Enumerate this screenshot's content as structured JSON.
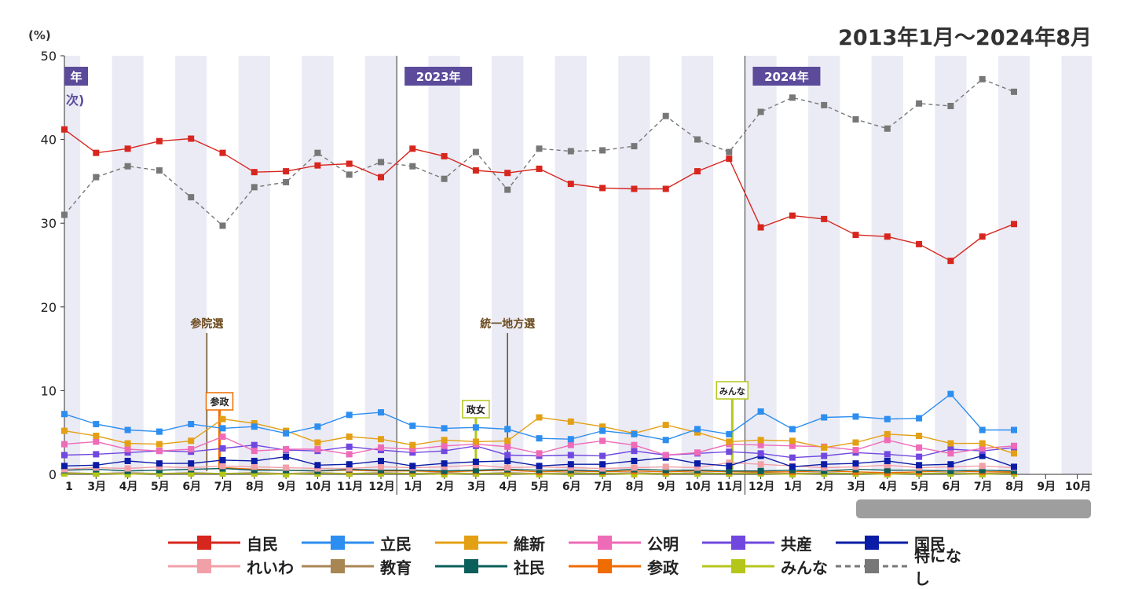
{
  "header": {
    "range": "2013年1月～2024年8月",
    "unit": "(%)"
  },
  "chart_data": {
    "type": "line",
    "title": "",
    "xlabel": "",
    "ylabel": "(%)",
    "ylim": [
      0,
      50
    ],
    "yticks": [
      0,
      10,
      20,
      30,
      40,
      50
    ],
    "year_labels": [
      {
        "label": "年",
        "at": "2022-01"
      },
      {
        "label": "2023年",
        "at": "2023-01"
      },
      {
        "label": "2024年",
        "at": "2024-01"
      }
    ],
    "partial_text": "次)",
    "x_tick_labels": [
      "1",
      "3月",
      "4月",
      "5月",
      "6月",
      "7月",
      "8月",
      "9月",
      "10月",
      "11月",
      "12月",
      "1月",
      "2月",
      "3月",
      "4月",
      "5月",
      "6月",
      "7月",
      "8月",
      "9月",
      "10月",
      "11月",
      "12月",
      "1月",
      "2月",
      "3月",
      "4月",
      "5月",
      "6月",
      "7月",
      "8月",
      "9月",
      "10月"
    ],
    "annotations": [
      {
        "label": "参院選",
        "type": "event",
        "at_index": 4.5
      },
      {
        "label": "統一地方選",
        "type": "event",
        "at_index": 14
      },
      {
        "label": "参政",
        "type": "party-debut",
        "at_index": 4.9,
        "color": "#ef6c00"
      },
      {
        "label": "政女",
        "type": "party-debut",
        "at_index": 13,
        "color": "#b5c61b"
      },
      {
        "label": "みんな",
        "type": "party-debut",
        "at_index": 21.1,
        "color": "#b5c61b"
      }
    ],
    "series": [
      {
        "name": "自民",
        "color": "#d7261e",
        "dashed": false,
        "values": [
          41.2,
          38.4,
          38.9,
          39.8,
          40.1,
          38.4,
          36.1,
          36.2,
          36.9,
          37.1,
          35.5,
          38.9,
          38.0,
          36.3,
          36.0,
          36.5,
          34.7,
          34.2,
          34.1,
          34.1,
          36.2,
          37.7,
          29.5,
          30.9,
          30.5,
          28.6,
          28.4,
          27.5,
          25.5,
          28.4,
          29.9
        ]
      },
      {
        "name": "立民",
        "color": "#2c8ef0",
        "dashed": false,
        "values": [
          7.2,
          6.0,
          5.3,
          5.1,
          6.0,
          5.5,
          5.7,
          4.9,
          5.7,
          7.1,
          7.4,
          5.8,
          5.5,
          5.6,
          5.4,
          4.3,
          4.2,
          5.2,
          4.8,
          4.1,
          5.4,
          4.8,
          7.5,
          5.4,
          6.8,
          6.9,
          6.6,
          6.7,
          9.6,
          5.3,
          5.3
        ]
      },
      {
        "name": "維新",
        "color": "#e3a014",
        "dashed": false,
        "values": [
          5.2,
          4.6,
          3.7,
          3.6,
          4.0,
          6.6,
          6.1,
          5.2,
          3.8,
          4.5,
          4.2,
          3.5,
          4.1,
          3.9,
          4.0,
          6.8,
          6.3,
          5.7,
          4.9,
          5.9,
          5.0,
          3.9,
          4.1,
          4.0,
          3.2,
          3.8,
          4.8,
          4.6,
          3.7,
          3.7,
          2.5
        ]
      },
      {
        "name": "公明",
        "color": "#ee6bb8",
        "dashed": false,
        "values": [
          3.6,
          3.9,
          3.0,
          2.8,
          3.0,
          4.5,
          2.8,
          3.0,
          3.0,
          2.4,
          3.2,
          3.0,
          3.4,
          3.6,
          3.3,
          2.5,
          3.5,
          4.0,
          3.5,
          2.3,
          2.6,
          3.6,
          3.5,
          3.4,
          3.3,
          2.9,
          4.1,
          3.2,
          2.5,
          3.1,
          3.4
        ]
      },
      {
        "name": "共産",
        "color": "#7048e0",
        "dashed": false,
        "values": [
          2.3,
          2.4,
          2.6,
          2.8,
          2.7,
          3.1,
          3.5,
          2.9,
          2.8,
          3.3,
          2.9,
          2.6,
          2.8,
          3.4,
          2.3,
          2.2,
          2.3,
          2.2,
          2.8,
          2.3,
          2.5,
          2.7,
          2.5,
          2.0,
          2.2,
          2.6,
          2.4,
          2.1,
          3.0,
          2.8,
          3.2
        ]
      },
      {
        "name": "国民",
        "color": "#0a1ca5",
        "dashed": false,
        "values": [
          1.0,
          1.1,
          1.6,
          1.3,
          1.3,
          1.7,
          1.6,
          2.1,
          1.1,
          1.2,
          1.6,
          1.0,
          1.3,
          1.5,
          1.6,
          1.0,
          1.2,
          1.2,
          1.6,
          2.0,
          1.3,
          1.0,
          2.2,
          0.9,
          1.2,
          1.3,
          1.6,
          1.1,
          1.2,
          2.2,
          0.9
        ]
      },
      {
        "name": "れいわ",
        "color": "#f2a0a8",
        "dashed": false,
        "values": [
          0.6,
          0.8,
          0.7,
          0.9,
          0.8,
          1.0,
          0.9,
          0.8,
          0.7,
          0.7,
          0.9,
          0.8,
          0.9,
          1.1,
          0.8,
          0.9,
          0.8,
          0.7,
          0.8,
          0.9,
          0.8,
          1.4,
          1.2,
          1.0,
          0.8,
          0.9,
          1.1,
          0.8,
          0.9,
          1.0,
          0.8
        ]
      },
      {
        "name": "教育",
        "color": "#a88654",
        "dashed": false,
        "values": [
          0.2,
          0.1,
          0.2,
          0.1,
          0.2,
          0.1,
          0.2,
          0.1,
          0.2,
          0.1,
          0.2,
          0.1,
          0.2,
          0.1,
          0.2,
          0.1,
          0.2,
          0.1,
          0.2,
          0.1,
          0.2,
          0.1,
          0.2,
          0.1,
          0.2,
          0.1,
          0.2,
          0.1,
          0.2,
          0.1,
          0.2
        ]
      },
      {
        "name": "社民",
        "color": "#0b5f5a",
        "dashed": false,
        "values": [
          0.5,
          0.6,
          0.4,
          0.5,
          0.6,
          0.7,
          0.5,
          0.5,
          0.4,
          0.6,
          0.5,
          0.5,
          0.4,
          0.5,
          0.6,
          0.5,
          0.5,
          0.4,
          0.6,
          0.5,
          0.5,
          0.4,
          0.4,
          0.5,
          0.4,
          0.6,
          0.5,
          0.5,
          0.4,
          0.5,
          0.4
        ]
      },
      {
        "name": "参政",
        "color": "#ef6c00",
        "dashed": false,
        "values": [
          null,
          null,
          null,
          null,
          null,
          0.8,
          0.6,
          0.5,
          0.4,
          0.5,
          0.4,
          0.4,
          0.3,
          0.4,
          0.5,
          0.3,
          0.4,
          0.3,
          0.4,
          0.3,
          0.4,
          0.3,
          0.3,
          0.3,
          0.4,
          0.3,
          0.2,
          0.3,
          0.4,
          0.3,
          0.3
        ]
      },
      {
        "name": "みんな",
        "color": "#b5c61b",
        "dashed": false,
        "values": [
          0.1,
          0.1,
          0.0,
          0.1,
          0.1,
          0.1,
          0.1,
          0.0,
          0.1,
          0.1,
          0.1,
          0.1,
          0.0,
          0.1,
          0.1,
          0.0,
          0.1,
          0.1,
          0.0,
          0.1,
          0.1,
          0.1,
          0.1,
          0.0,
          0.1,
          0.1,
          0.0,
          0.1,
          0.1,
          0.0,
          0.1
        ]
      },
      {
        "name": "特になし",
        "color": "#777777",
        "dashed": true,
        "values": [
          31.0,
          35.5,
          36.8,
          36.3,
          33.1,
          29.7,
          34.3,
          34.9,
          38.4,
          35.8,
          37.3,
          36.8,
          35.3,
          38.5,
          34.0,
          38.9,
          38.6,
          38.7,
          39.2,
          42.8,
          40.0,
          38.5,
          43.3,
          45.0,
          44.1,
          42.4,
          41.3,
          44.3,
          44.0,
          47.2,
          45.7
        ]
      }
    ],
    "legend": {
      "placement": "bottom",
      "rows": [
        [
          0,
          1,
          2,
          3,
          4,
          5
        ],
        [
          6,
          7,
          8,
          9,
          10,
          11
        ]
      ]
    }
  }
}
